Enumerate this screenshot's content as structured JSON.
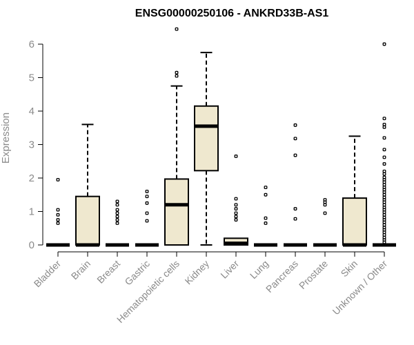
{
  "chart_data": {
    "type": "boxplot",
    "title": "ENSG00000250106 - ANKRD33B-AS1",
    "ylabel": "Expression",
    "xlabel": "",
    "ylim": [
      0,
      6.5
    ],
    "yticks": [
      0,
      1,
      2,
      3,
      4,
      5,
      6
    ],
    "grid": false,
    "box_fill": "#efe8cf",
    "categories": [
      "Bladder",
      "Brain",
      "Breast",
      "Gastric",
      "Hematopoietic cells",
      "Kidney",
      "Liver",
      "Lung",
      "Pancreas",
      "Prostate",
      "Skin",
      "Unknown / Other"
    ],
    "boxes": [
      {
        "category": "Bladder",
        "whisker_low": 0,
        "q1": 0,
        "median": 0,
        "q3": 0,
        "whisker_high": 0,
        "outliers": [
          1.95,
          1.05,
          0.9,
          0.75,
          0.65
        ]
      },
      {
        "category": "Brain",
        "whisker_low": 0,
        "q1": 0,
        "median": 0,
        "q3": 1.45,
        "whisker_high": 3.6,
        "outliers": []
      },
      {
        "category": "Breast",
        "whisker_low": 0,
        "q1": 0,
        "median": 0,
        "q3": 0,
        "whisker_high": 0,
        "outliers": [
          1.3,
          1.2,
          1.05,
          0.95,
          0.85,
          0.75,
          0.65
        ]
      },
      {
        "category": "Gastric",
        "whisker_low": 0,
        "q1": 0,
        "median": 0,
        "q3": 0,
        "whisker_high": 0,
        "outliers": [
          1.6,
          1.45,
          1.25,
          0.95,
          0.72
        ]
      },
      {
        "category": "Hematopoietic cells",
        "whisker_low": 0,
        "q1": 0,
        "median": 1.2,
        "q3": 1.97,
        "whisker_high": 4.75,
        "outliers": [
          6.45,
          5.15,
          5.05
        ]
      },
      {
        "category": "Kidney",
        "whisker_low": 0,
        "q1": 2.22,
        "median": 3.55,
        "q3": 4.15,
        "whisker_high": 5.75,
        "outliers": []
      },
      {
        "category": "Liver",
        "whisker_low": 0,
        "q1": 0,
        "median": 0.05,
        "q3": 0.2,
        "whisker_high": 0.2,
        "outliers": [
          2.65,
          1.38,
          1.2,
          1.08,
          0.95,
          0.85,
          0.75
        ]
      },
      {
        "category": "Lung",
        "whisker_low": 0,
        "q1": 0,
        "median": 0,
        "q3": 0,
        "whisker_high": 0,
        "outliers": [
          1.72,
          1.5,
          0.8,
          0.65
        ]
      },
      {
        "category": "Pancreas",
        "whisker_low": 0,
        "q1": 0,
        "median": 0,
        "q3": 0,
        "whisker_high": 0,
        "outliers": [
          3.58,
          3.18,
          2.68,
          1.08,
          0.78
        ]
      },
      {
        "category": "Prostate",
        "whisker_low": 0,
        "q1": 0,
        "median": 0,
        "q3": 0,
        "whisker_high": 0,
        "outliers": [
          1.35,
          1.28,
          1.2,
          0.95
        ]
      },
      {
        "category": "Skin",
        "whisker_low": 0,
        "q1": 0,
        "median": 0,
        "q3": 1.4,
        "whisker_high": 3.25,
        "outliers": []
      },
      {
        "category": "Unknown / Other",
        "whisker_low": 0,
        "q1": 0,
        "median": 0,
        "q3": 0,
        "whisker_high": 0,
        "outliers": [
          6.0,
          3.78,
          3.6,
          3.52,
          3.2,
          2.85,
          2.62,
          2.42,
          2.2,
          2.12,
          2.02,
          1.95,
          1.88,
          1.8,
          1.72,
          1.65,
          1.58,
          1.5,
          1.42,
          1.35,
          1.28,
          1.2,
          1.12,
          1.05,
          0.98,
          0.9,
          0.82,
          0.75,
          0.68,
          0.6,
          0.52,
          0.45,
          0.38,
          0.3,
          0.22,
          0.15,
          0.08
        ]
      }
    ]
  }
}
